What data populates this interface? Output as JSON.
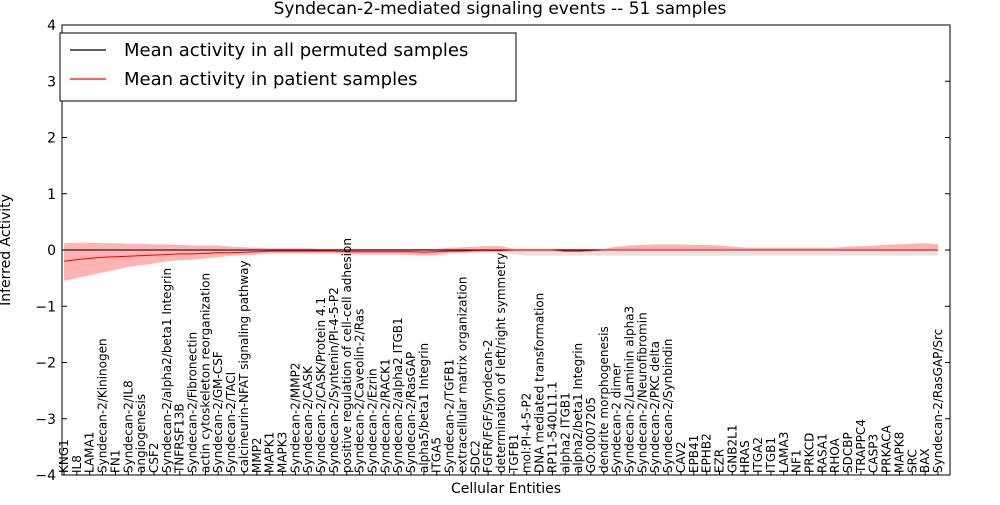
{
  "chart_data": {
    "type": "line",
    "title": "Syndecan-2-mediated signaling events -- 51 samples",
    "xlabel": "Cellular Entities",
    "ylabel": "Inferred Activity",
    "ylim": [
      -4,
      4
    ],
    "yticks": [
      4,
      3,
      2,
      1,
      0,
      -1,
      -2,
      -3,
      -4
    ],
    "ytick_labels": [
      "4",
      "3",
      "2",
      "1",
      "0",
      "−1",
      "−2",
      "−3",
      "−4"
    ],
    "legend": {
      "placement": "top-left",
      "entries": [
        {
          "label": "Mean activity in all permuted samples",
          "color": "#000000"
        },
        {
          "label": "Mean activity in patient samples",
          "color": "#ff0000"
        }
      ]
    },
    "categories": [
      "KNG1",
      "IL8",
      "LAMA1",
      "Syndecan-2/Kininogen",
      "FN1",
      "Syndecan-2/IL8",
      "angiogenesis",
      "CSF2",
      "Syndecan-2/alpha2/beta1 Integrin",
      "TNFRSF13B",
      "Syndecan-2/Fibronectin",
      "actin cytoskeleton reorganization",
      "Syndecan-2/GM-CSF",
      "Syndecan-2/TACI",
      "calcineurin-NFAT signaling pathway",
      "MMP2",
      "MAPK1",
      "MAPK3",
      "Syndecan-2/MMP2",
      "Syndecan-2/CASK",
      "Syndecan-2/CASK/Protein 4.1",
      "Syndecan-2/Syntenin/PI-4-5-P2",
      "positive regulation of cell-cell adhesion",
      "Syndecan-2/Caveolin-2/Ras",
      "Syndecan-2/Ezrin",
      "Syndecan-2/RACK1",
      "Syndecan-2/alpha2 ITGB1",
      "Syndecan-2/RasGAP",
      "alpha5/beta1 Integrin",
      "ITGA5",
      "Syndecan-2/TGFB1",
      "extracellular matrix organization",
      "SDC2",
      "FGFR/FGF/Syndecan-2",
      "determination of left/right symmetry",
      "TGFB1",
      "mol:PI-4-5-P2",
      "DNA mediated transformation",
      "RP11-540L11.1",
      "alpha2 ITGB1",
      "alpha2/beta1 Integrin",
      "GO:0007205",
      "dendrite morphogenesis",
      "Syndecan-2 dimer",
      "Syndecan-2/Laminin alpha3",
      "Syndecan-2/Neurofibromin",
      "Syndecan-2/PKC delta",
      "Syndecan-2/Synbindin",
      "CAV2",
      "EPB41",
      "EPHB2",
      "EZR",
      "GNB2L1",
      "HRAS",
      "ITGA2",
      "ITGB1",
      "LAMA3",
      "NF1",
      "PRKCD",
      "RASA1",
      "RHOA",
      "SDCBP",
      "TRAPPC4",
      "CASP3",
      "PRKACA",
      "MAPK8",
      "SRC",
      "BAX",
      "Syndecan-2/RasGAP/Src"
    ],
    "series": [
      {
        "name": "Mean activity in all permuted samples",
        "color": "#000000",
        "values": [
          0.0,
          0.0,
          0.0,
          0.0,
          0.0,
          0.0,
          0.0,
          0.0,
          0.0,
          0.0,
          0.0,
          0.0,
          0.0,
          0.0,
          0.0,
          0.0,
          0.0,
          0.0,
          0.0,
          0.0,
          0.0,
          0.0,
          0.0,
          0.0,
          0.0,
          0.0,
          0.0,
          0.0,
          0.0,
          0.0,
          0.0,
          0.0,
          0.0,
          0.0,
          0.0,
          0.0,
          0.0,
          0.0,
          0.0,
          0.0,
          0.0,
          0.0,
          0.0,
          0.0,
          0.0,
          0.0,
          0.0,
          0.0,
          0.0,
          0.0,
          0.0,
          0.0,
          0.0,
          0.0,
          0.0,
          0.0,
          0.0,
          0.0,
          0.0,
          0.0,
          0.0,
          0.0,
          0.0,
          0.0,
          0.0,
          0.0,
          0.0,
          0.0,
          0.0
        ],
        "band_upper": [
          0.02,
          0.02,
          0.02,
          0.02,
          0.02,
          0.02,
          0.02,
          0.02,
          0.02,
          0.02,
          0.02,
          0.02,
          0.02,
          0.02,
          0.02,
          0.02,
          0.02,
          0.02,
          0.02,
          0.02,
          0.02,
          0.02,
          0.02,
          0.02,
          0.02,
          0.02,
          0.02,
          0.02,
          0.02,
          0.02,
          0.02,
          0.02,
          0.02,
          0.02,
          0.02,
          0.02,
          0.02,
          0.02,
          0.02,
          0.02,
          0.02,
          0.02,
          0.02,
          0.02,
          0.02,
          0.02,
          0.02,
          0.02,
          0.02,
          0.02,
          0.02,
          0.02,
          0.02,
          0.02,
          0.02,
          0.02,
          0.02,
          0.02,
          0.02,
          0.02,
          0.02,
          0.02,
          0.02,
          0.02,
          0.02,
          0.02,
          0.02,
          0.02,
          0.02
        ],
        "band_lower": [
          -0.02,
          -0.02,
          -0.02,
          -0.02,
          -0.02,
          -0.02,
          -0.02,
          -0.02,
          -0.02,
          -0.02,
          -0.02,
          -0.02,
          -0.02,
          -0.02,
          -0.02,
          -0.02,
          -0.02,
          -0.02,
          -0.02,
          -0.02,
          -0.02,
          -0.02,
          -0.02,
          -0.02,
          -0.02,
          -0.02,
          -0.02,
          -0.02,
          -0.02,
          -0.02,
          -0.02,
          -0.02,
          -0.02,
          -0.02,
          -0.05,
          -0.08,
          -0.1,
          -0.1,
          -0.1,
          -0.1,
          -0.1,
          -0.1,
          -0.1,
          -0.1,
          -0.1,
          -0.1,
          -0.1,
          -0.1,
          -0.1,
          -0.1,
          -0.1,
          -0.1,
          -0.1,
          -0.1,
          -0.1,
          -0.1,
          -0.1,
          -0.1,
          -0.1,
          -0.1,
          -0.1,
          -0.1,
          -0.1,
          -0.1,
          -0.1,
          -0.1,
          -0.1,
          -0.1,
          -0.1
        ]
      },
      {
        "name": "Mean activity in patient samples",
        "color": "#ff0000",
        "values": [
          -0.2,
          -0.17,
          -0.15,
          -0.13,
          -0.12,
          -0.11,
          -0.1,
          -0.09,
          -0.08,
          -0.07,
          -0.07,
          -0.06,
          -0.05,
          -0.05,
          -0.04,
          -0.03,
          -0.02,
          -0.02,
          -0.02,
          -0.02,
          -0.02,
          -0.02,
          -0.03,
          -0.03,
          -0.03,
          -0.03,
          -0.03,
          -0.03,
          -0.04,
          -0.03,
          -0.02,
          -0.02,
          -0.01,
          -0.01,
          -0.01,
          0.0,
          0.0,
          0.0,
          0.0,
          -0.02,
          -0.02,
          -0.01,
          0.0,
          0.0,
          0.0,
          0.0,
          0.0,
          0.0,
          0.0,
          0.0,
          0.0,
          0.0,
          0.0,
          0.0,
          0.0,
          0.0,
          0.0,
          0.0,
          0.0,
          0.0,
          0.0,
          0.0,
          0.0,
          0.0,
          0.0,
          0.0,
          0.0,
          0.0,
          0.0
        ],
        "band_upper": [
          0.12,
          0.13,
          0.13,
          0.12,
          0.12,
          0.11,
          0.11,
          0.1,
          0.1,
          0.09,
          0.08,
          0.08,
          0.08,
          0.06,
          0.05,
          0.04,
          0.03,
          0.03,
          0.03,
          0.03,
          0.02,
          0.02,
          0.02,
          0.02,
          0.02,
          0.02,
          0.02,
          0.02,
          0.02,
          0.02,
          0.04,
          0.05,
          0.06,
          0.07,
          0.07,
          0.02,
          0.02,
          0.02,
          0.02,
          0.02,
          0.02,
          0.02,
          0.02,
          0.06,
          0.08,
          0.09,
          0.1,
          0.1,
          0.1,
          0.09,
          0.09,
          0.08,
          0.06,
          0.04,
          0.04,
          0.04,
          0.04,
          0.04,
          0.04,
          0.04,
          0.04,
          0.06,
          0.07,
          0.08,
          0.09,
          0.1,
          0.11,
          0.12,
          0.1
        ],
        "band_lower": [
          -0.55,
          -0.5,
          -0.45,
          -0.4,
          -0.35,
          -0.3,
          -0.27,
          -0.24,
          -0.2,
          -0.18,
          -0.17,
          -0.15,
          -0.13,
          -0.1,
          -0.09,
          -0.08,
          -0.06,
          -0.06,
          -0.06,
          -0.06,
          -0.06,
          -0.06,
          -0.07,
          -0.08,
          -0.08,
          -0.08,
          -0.08,
          -0.09,
          -0.1,
          -0.09,
          -0.06,
          -0.05,
          -0.04,
          -0.03,
          -0.03,
          -0.02,
          -0.02,
          -0.02,
          -0.02,
          -0.03,
          -0.04,
          -0.02,
          -0.01,
          -0.01,
          -0.01,
          -0.01,
          -0.01,
          -0.01,
          -0.01,
          -0.01,
          -0.01,
          -0.01,
          -0.01,
          -0.01,
          -0.01,
          -0.01,
          -0.01,
          -0.01,
          -0.01,
          -0.01,
          -0.01,
          -0.02,
          -0.02,
          -0.02,
          -0.02,
          -0.02,
          -0.02,
          -0.02,
          -0.02
        ]
      }
    ]
  }
}
